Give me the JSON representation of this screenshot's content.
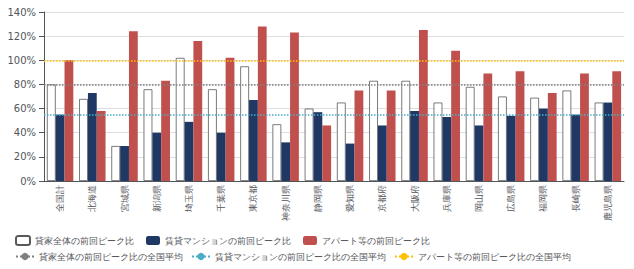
{
  "chart_data": {
    "type": "bar",
    "categories": [
      "全国計",
      "北海道",
      "宮城県",
      "新潟県",
      "埼玉県",
      "千葉県",
      "東京都",
      "神奈川県",
      "静岡県",
      "愛知県",
      "京都府",
      "大阪府",
      "兵庫県",
      "岡山県",
      "広島県",
      "福岡県",
      "長崎県",
      "鹿児島県"
    ],
    "series": [
      {
        "name": "貸家全体の前回ピーク比",
        "color": "#ffffff",
        "values": [
          80,
          68,
          29,
          76,
          102,
          76,
          95,
          47,
          60,
          65,
          83,
          83,
          65,
          78,
          70,
          69,
          75,
          65
        ]
      },
      {
        "name": "賃貸マンションの前回ピーク比",
        "color": "#1f3864",
        "values": [
          55,
          73,
          29,
          40,
          49,
          40,
          67,
          32,
          57,
          31,
          46,
          58,
          53,
          46,
          54,
          60,
          55,
          65
        ]
      },
      {
        "name": "アパート等の前回ピーク比",
        "color": "#c0504d",
        "values": [
          100,
          58,
          124,
          83,
          116,
          102,
          128,
          123,
          46,
          75,
          75,
          125,
          108,
          89,
          91,
          73,
          89,
          91
        ]
      }
    ],
    "reference_lines": [
      {
        "name": "貸家全体の前回ピーク比の全国平均",
        "value": 80,
        "color": "#808080",
        "line_style": "dotted"
      },
      {
        "name": "賃貸マンションの前回ピーク比の全国平均",
        "value": 55,
        "color": "#4bacc6",
        "line_style": "dotted"
      },
      {
        "name": "アパート等の前回ピーク比の全国平均",
        "value": 100,
        "color": "#ffc000",
        "line_style": "dotted"
      }
    ],
    "ylim": [
      0,
      140
    ],
    "yticks": [
      {
        "value": 0,
        "label": "0%"
      },
      {
        "value": 20,
        "label": "20%"
      },
      {
        "value": 40,
        "label": "40%"
      },
      {
        "value": 60,
        "label": "60%"
      },
      {
        "value": 80,
        "label": "80%"
      },
      {
        "value": 100,
        "label": "100%"
      },
      {
        "value": 120,
        "label": "120%"
      },
      {
        "value": 140,
        "label": "140%"
      }
    ],
    "grid": true
  }
}
